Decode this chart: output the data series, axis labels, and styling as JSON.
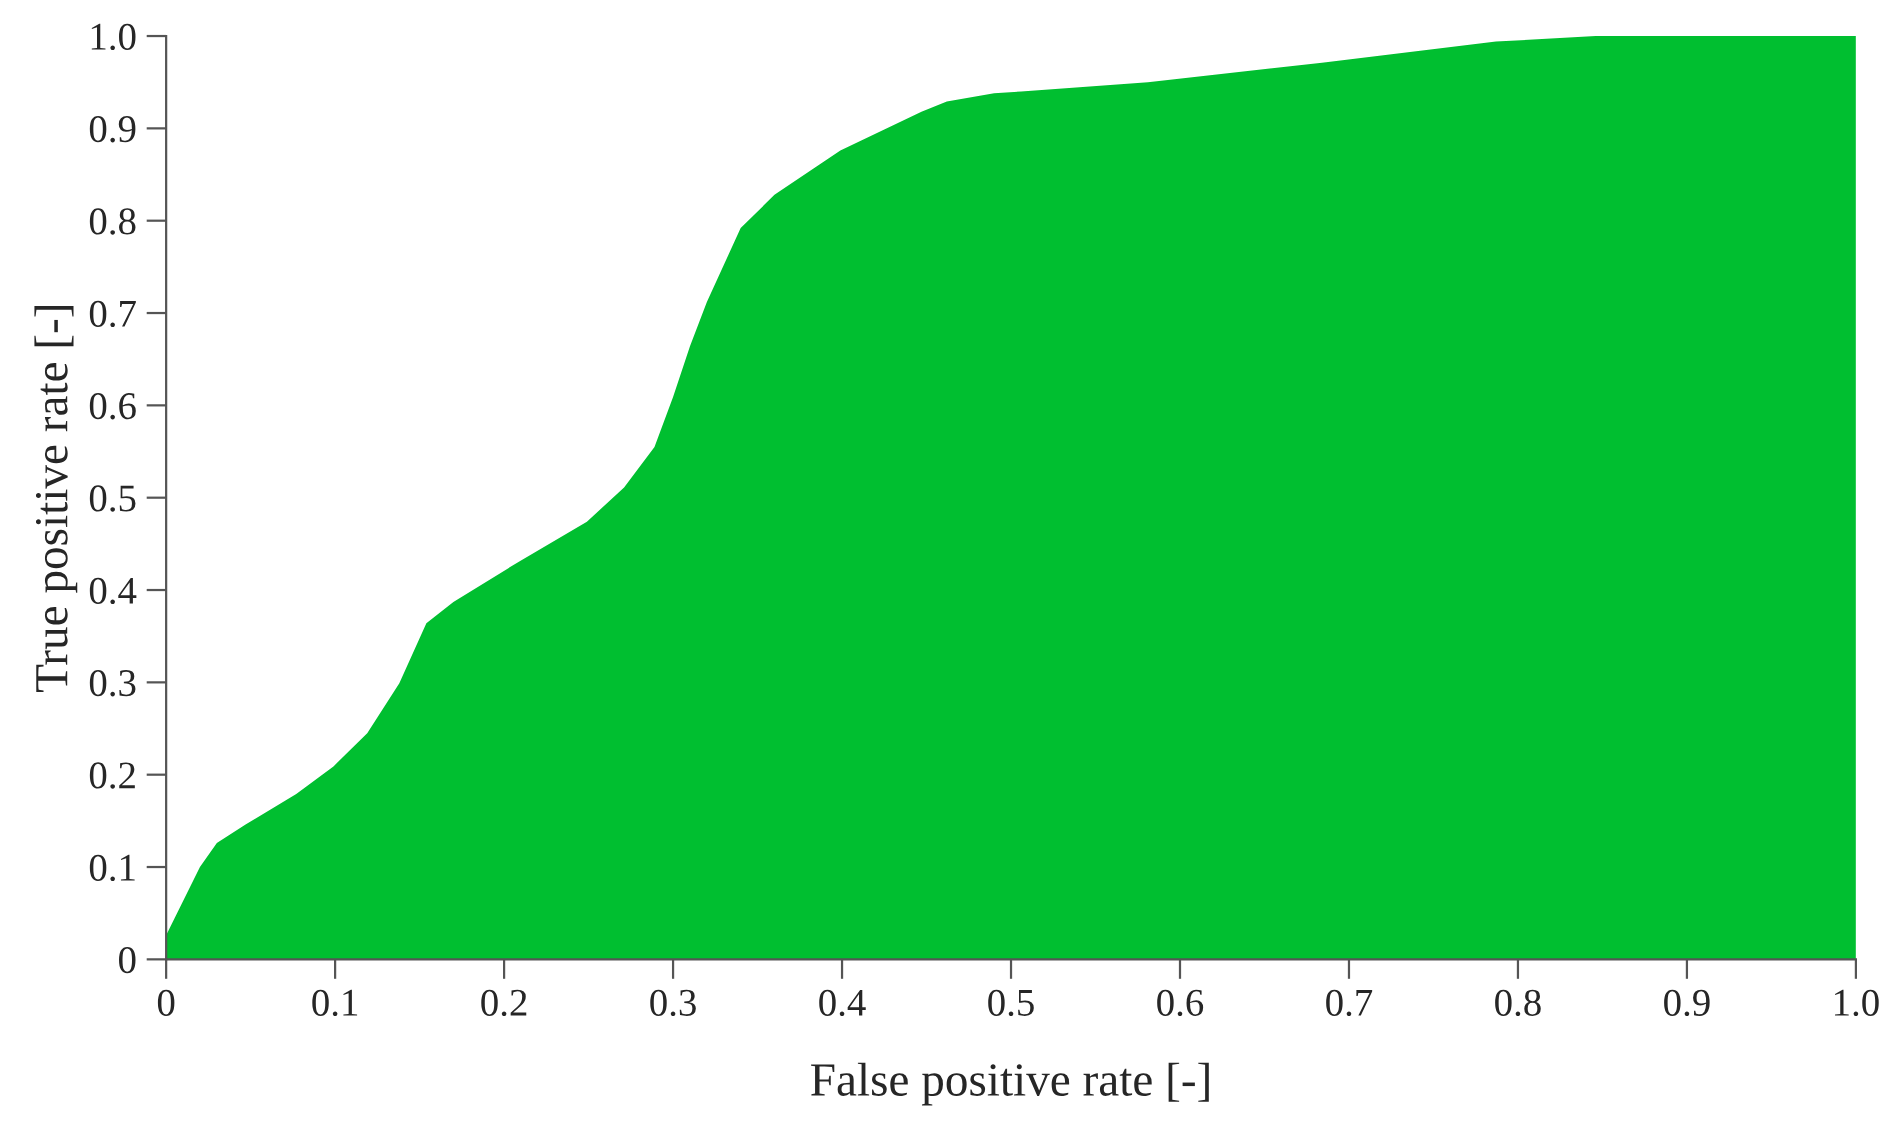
{
  "chart_data": {
    "type": "area",
    "xlabel": "False positive rate [-]",
    "ylabel": "True positive rate [-]",
    "x": [
      0,
      0.02,
      0.03,
      0.047,
      0.077,
      0.099,
      0.119,
      0.138,
      0.154,
      0.17,
      0.209,
      0.249,
      0.271,
      0.289,
      0.3,
      0.31,
      0.32,
      0.34,
      0.36,
      0.399,
      0.447,
      0.462,
      0.49,
      0.506,
      0.581,
      0.684,
      0.787,
      0.846,
      1.0
    ],
    "series": [
      {
        "color": "#00bf30",
        "values": [
          0.026,
          0.1,
          0.126,
          0.146,
          0.179,
          0.209,
          0.245,
          0.299,
          0.364,
          0.387,
          0.431,
          0.474,
          0.511,
          0.555,
          0.609,
          0.664,
          0.712,
          0.792,
          0.828,
          0.876,
          0.918,
          0.929,
          0.938,
          0.94,
          0.95,
          0.971,
          0.994,
          1.0,
          1.0
        ]
      }
    ],
    "xlim": [
      0,
      1
    ],
    "ylim": [
      0,
      1
    ],
    "xticks": [
      0,
      0.1,
      0.2,
      0.3,
      0.4,
      0.5,
      0.6,
      0.7,
      0.8,
      0.9,
      {
        "value": 1,
        "label": "1.0"
      }
    ],
    "yticks": [
      0,
      0.1,
      0.2,
      0.3,
      0.4,
      0.5,
      0.6,
      0.7,
      0.8,
      0.9,
      {
        "value": 1,
        "label": "1.0"
      }
    ],
    "grid": false,
    "legend": false
  }
}
